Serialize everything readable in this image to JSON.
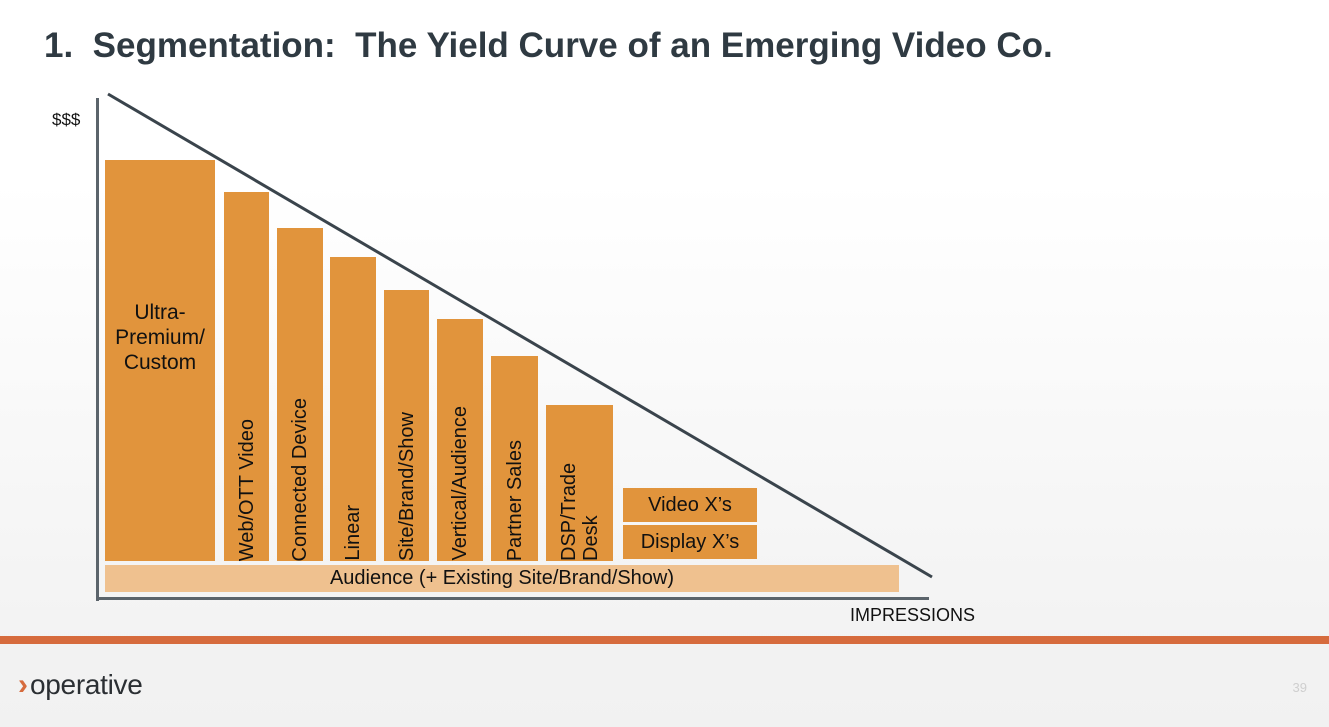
{
  "title": "1.  Segmentation:  The Yield Curve of an Emerging Video Co.",
  "diagram": {
    "y_axis_label": "$$$",
    "x_axis_label": "IMPRESSIONS",
    "segments": [
      {
        "label": "Ultra-\nPremium/\nCustom",
        "orientation": "horizontal"
      },
      {
        "label": "Web/OTT Video",
        "orientation": "vertical"
      },
      {
        "label": "Connected Device",
        "orientation": "vertical"
      },
      {
        "label": "Linear",
        "orientation": "vertical"
      },
      {
        "label": "Site/Brand/Show",
        "orientation": "vertical"
      },
      {
        "label": "Vertical/Audience",
        "orientation": "vertical"
      },
      {
        "label": "Partner Sales",
        "orientation": "vertical"
      },
      {
        "label": "DSP/Trade Desk",
        "orientation": "vertical"
      }
    ],
    "stacked": {
      "top": "Video X’s",
      "bottom": "Display X’s"
    },
    "base_bar": "Audience (+ Existing Site/Brand/Show)"
  },
  "footer": {
    "logo_text": "operative",
    "page_number": "39"
  },
  "colors": {
    "title": "#2f3a42",
    "bar": "#e1943c",
    "base_bar": "#efc18f",
    "axis": "#5b646b",
    "footer_rule": "#d66b3d"
  }
}
